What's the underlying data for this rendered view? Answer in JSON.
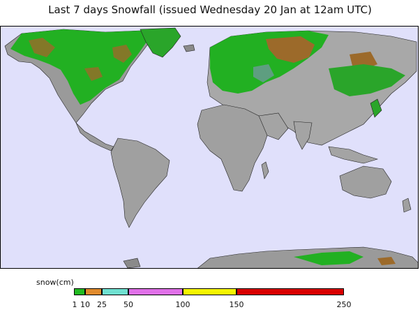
{
  "title": "Last 7 days Snowfall (issued Wednesday 20 Jan at 12am UTC)",
  "colors": {
    "ocean": "#e0e0fb",
    "land": "#a8a8a8",
    "snow_light": "#22b022",
    "snow_1_10": "#1fb81f",
    "snow_10_25": "#e08a2c",
    "snow_25_50": "#66e0cc",
    "snow_50_100": "#e070e8",
    "snow_100_150": "#f0f000",
    "snow_150_250": "#d80000"
  },
  "legend": {
    "label": "snow(cm)",
    "ticks": [
      "1",
      "10",
      "25",
      "50",
      "100",
      "150",
      "250"
    ],
    "bins": [
      {
        "from": "1",
        "to": "10",
        "color": "#22bb22"
      },
      {
        "from": "10",
        "to": "25",
        "color": "#e08a2c"
      },
      {
        "from": "25",
        "to": "50",
        "color": "#6fe0d0"
      },
      {
        "from": "50",
        "to": "100",
        "color": "#e070e8"
      },
      {
        "from": "100",
        "to": "150",
        "color": "#f4f400"
      },
      {
        "from": "150",
        "to": "250",
        "color": "#d80000"
      }
    ]
  }
}
